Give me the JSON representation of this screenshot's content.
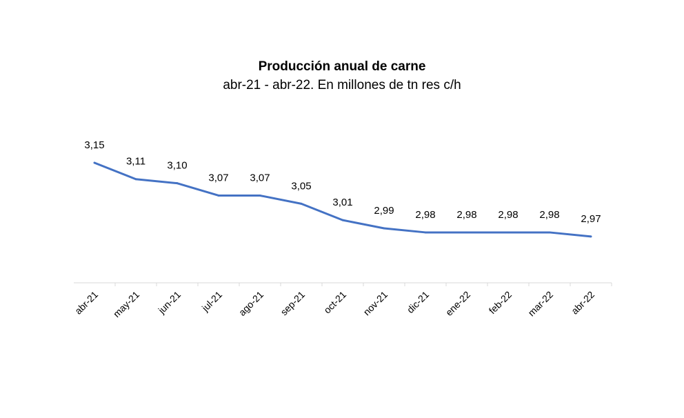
{
  "chart_data": {
    "type": "line",
    "title": "Producción anual de carne",
    "subtitle": "abr-21 - abr-22. En millones de tn res c/h",
    "categories": [
      "abr-21",
      "may-21",
      "jun-21",
      "jul-21",
      "ago-21",
      "sep-21",
      "oct-21",
      "nov-21",
      "dic-21",
      "ene-22",
      "feb-22",
      "mar-22",
      "abr-22"
    ],
    "values": [
      3.15,
      3.11,
      3.1,
      3.07,
      3.07,
      3.05,
      3.01,
      2.99,
      2.98,
      2.98,
      2.98,
      2.98,
      2.97
    ],
    "data_labels": [
      "3,15",
      "3,11",
      "3,10",
      "3,07",
      "3,07",
      "3,05",
      "3,01",
      "2,99",
      "2,98",
      "2,98",
      "2,98",
      "2,98",
      "2,97"
    ],
    "ylim": [
      2.857,
      3.2
    ],
    "grid": false,
    "legend": "none",
    "line_color": "#4472C4"
  }
}
